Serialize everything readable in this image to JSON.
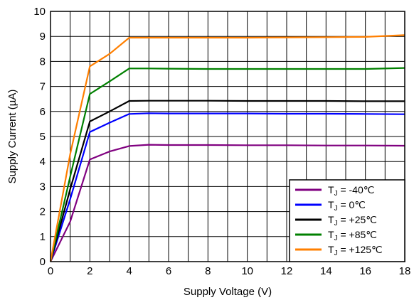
{
  "chart_data": {
    "type": "line",
    "title": "",
    "xlabel": "Supply Voltage (V)",
    "ylabel": "Supply Current (µA)",
    "xlim": [
      0,
      18
    ],
    "ylim": [
      0,
      10
    ],
    "x_ticks": [
      "0",
      "2",
      "4",
      "6",
      "8",
      "10",
      "12",
      "14",
      "16",
      "18"
    ],
    "y_ticks": [
      "0",
      "1",
      "2",
      "3",
      "4",
      "5",
      "6",
      "7",
      "8",
      "9",
      "10"
    ],
    "grid": true,
    "minor_x_grid_step": 1,
    "legend_position": "bottom-right",
    "series": [
      {
        "name": "T_J = -40℃",
        "label_main": "T",
        "label_sub": "J",
        "label_rest": " = -40℃",
        "color": "#800080",
        "x": [
          0,
          1,
          2,
          3,
          4,
          5,
          6,
          8,
          10,
          12,
          14,
          16,
          18
        ],
        "y": [
          0,
          1.6,
          4.08,
          4.4,
          4.62,
          4.67,
          4.66,
          4.66,
          4.65,
          4.65,
          4.64,
          4.64,
          4.63
        ]
      },
      {
        "name": "T_J = 0℃",
        "label_main": "T",
        "label_sub": "J",
        "label_rest": " = 0℃",
        "color": "#0000ff",
        "x": [
          0,
          1,
          2,
          3,
          4,
          5,
          6,
          8,
          10,
          12,
          14,
          16,
          18
        ],
        "y": [
          0,
          2.5,
          5.18,
          5.55,
          5.9,
          5.93,
          5.92,
          5.92,
          5.92,
          5.91,
          5.91,
          5.9,
          5.89
        ]
      },
      {
        "name": "T_J = +25℃",
        "label_main": "T",
        "label_sub": "J",
        "label_rest": " = +25℃",
        "color": "#000000",
        "x": [
          0,
          1,
          2,
          3,
          4,
          5,
          6,
          8,
          10,
          12,
          14,
          16,
          18
        ],
        "y": [
          0,
          2.9,
          5.6,
          6.0,
          6.42,
          6.43,
          6.43,
          6.43,
          6.42,
          6.42,
          6.42,
          6.41,
          6.41
        ]
      },
      {
        "name": "T_J = +85℃",
        "label_main": "T",
        "label_sub": "J",
        "label_rest": " = +85℃",
        "color": "#008000",
        "x": [
          0,
          1,
          2,
          3,
          4,
          5,
          6,
          8,
          10,
          12,
          14,
          16,
          18
        ],
        "y": [
          0,
          3.4,
          6.7,
          7.2,
          7.72,
          7.72,
          7.71,
          7.7,
          7.7,
          7.7,
          7.7,
          7.7,
          7.74
        ]
      },
      {
        "name": "T_J = +125℃",
        "label_main": "T",
        "label_sub": "J",
        "label_rest": " = +125℃",
        "color": "#ff7f00",
        "x": [
          0,
          1,
          2,
          3,
          4,
          5,
          6,
          8,
          10,
          12,
          14,
          16,
          18
        ],
        "y": [
          0,
          4.3,
          7.8,
          8.3,
          8.95,
          8.95,
          8.95,
          8.95,
          8.95,
          8.96,
          8.97,
          8.98,
          9.05
        ]
      }
    ]
  }
}
